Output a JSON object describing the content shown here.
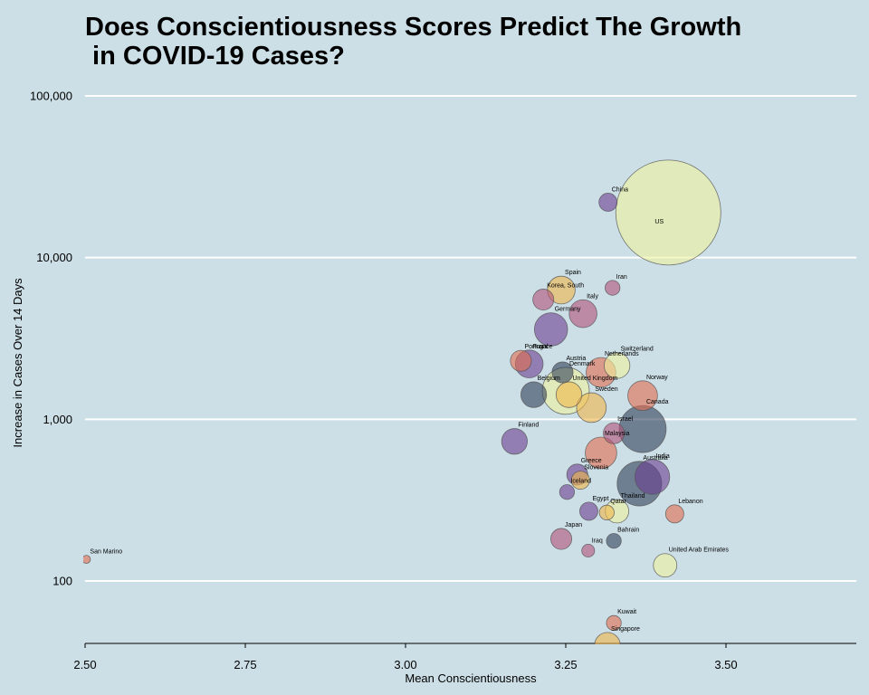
{
  "chart_data": {
    "type": "scatter",
    "title": "Does Conscientiousness Scores Predict The Growth\n in COVID-19 Cases?",
    "xlabel": "Mean Conscientiousness",
    "ylabel": "Increase in Cases Over 14 Days",
    "x_scale": "linear",
    "y_scale": "log10",
    "xlim": [
      2.5,
      3.7
    ],
    "ylim": [
      40,
      100000
    ],
    "x_ticks": [
      2.5,
      2.75,
      3.0,
      3.25,
      3.5
    ],
    "x_tick_labels": [
      "2.50",
      "2.75",
      "3.00",
      "3.25",
      "3.50"
    ],
    "y_ticks": [
      100,
      1000,
      10000,
      100000
    ],
    "y_tick_labels": [
      "100",
      "1,000",
      "10,000",
      "100,000"
    ],
    "grid": "horizontal major lines only, white",
    "legend": "none",
    "point_opacity": 0.6,
    "palette": [
      "#313f5a",
      "#6a3d8f",
      "#b0527a",
      "#e36d4e",
      "#f0b54a",
      "#eef29c"
    ],
    "points": [
      {
        "label": "US",
        "x": 3.41,
        "y": 19000,
        "size": 100,
        "color": "#eef29c"
      },
      {
        "label": "China",
        "x": 3.316,
        "y": 22000,
        "size": 3,
        "color": "#6a3d8f"
      },
      {
        "label": "Iran",
        "x": 3.323,
        "y": 6500,
        "size": 2,
        "color": "#b0527a"
      },
      {
        "label": "Spain",
        "x": 3.243,
        "y": 6300,
        "size": 7,
        "color": "#f0b54a"
      },
      {
        "label": "Korea, South",
        "x": 3.215,
        "y": 5500,
        "size": 4,
        "color": "#b0527a"
      },
      {
        "label": "Italy",
        "x": 3.277,
        "y": 4500,
        "size": 7,
        "color": "#b0527a"
      },
      {
        "label": "Germany",
        "x": 3.227,
        "y": 3600,
        "size": 10,
        "color": "#6a3d8f"
      },
      {
        "label": "Portugal",
        "x": 3.18,
        "y": 2300,
        "size": 4,
        "color": "#e36d4e"
      },
      {
        "label": "France",
        "x": 3.193,
        "y": 2200,
        "size": 7,
        "color": "#6a3d8f"
      },
      {
        "label": "Austria",
        "x": 3.245,
        "y": 1950,
        "size": 4,
        "color": "#313f5a"
      },
      {
        "label": "Switzerland",
        "x": 3.33,
        "y": 2150,
        "size": 6,
        "color": "#eef29c"
      },
      {
        "label": "Netherlands",
        "x": 3.305,
        "y": 1950,
        "size": 8,
        "color": "#e36d4e"
      },
      {
        "label": "Belgium",
        "x": 3.2,
        "y": 1420,
        "size": 6,
        "color": "#313f5a"
      },
      {
        "label": "United Kingdom",
        "x": 3.255,
        "y": 1420,
        "size": 6,
        "color": "#f0b54a"
      },
      {
        "label": "Denmark",
        "x": 3.25,
        "y": 1500,
        "size": 20,
        "color": "#eef29c"
      },
      {
        "label": "Norway",
        "x": 3.37,
        "y": 1400,
        "size": 8,
        "color": "#e36d4e"
      },
      {
        "label": "Sweden",
        "x": 3.29,
        "y": 1180,
        "size": 8,
        "color": "#f0b54a"
      },
      {
        "label": "Canada",
        "x": 3.37,
        "y": 870,
        "size": 20,
        "color": "#313f5a"
      },
      {
        "label": "Finland",
        "x": 3.17,
        "y": 730,
        "size": 6,
        "color": "#6a3d8f"
      },
      {
        "label": "Israel",
        "x": 3.325,
        "y": 820,
        "size": 4,
        "color": "#b0527a"
      },
      {
        "label": "Malaysia",
        "x": 3.305,
        "y": 620,
        "size": 9,
        "color": "#e36d4e"
      },
      {
        "label": "India",
        "x": 3.385,
        "y": 440,
        "size": 11,
        "color": "#6a3d8f"
      },
      {
        "label": "Australia",
        "x": 3.365,
        "y": 400,
        "size": 18,
        "color": "#313f5a"
      },
      {
        "label": "Greece",
        "x": 3.268,
        "y": 455,
        "size": 4,
        "color": "#6a3d8f"
      },
      {
        "label": "Slovenia",
        "x": 3.273,
        "y": 420,
        "size": 3,
        "color": "#f0b54a"
      },
      {
        "label": "Iceland",
        "x": 3.252,
        "y": 355,
        "size": 2,
        "color": "#6a3d8f"
      },
      {
        "label": "Lebanon",
        "x": 3.42,
        "y": 260,
        "size": 3,
        "color": "#e36d4e"
      },
      {
        "label": "Thailand",
        "x": 3.33,
        "y": 270,
        "size": 5,
        "color": "#eef29c"
      },
      {
        "label": "Egypt",
        "x": 3.286,
        "y": 270,
        "size": 3,
        "color": "#6a3d8f"
      },
      {
        "label": "Qatar",
        "x": 3.314,
        "y": 265,
        "size": 2,
        "color": "#f0b54a"
      },
      {
        "label": "Bahrain",
        "x": 3.325,
        "y": 177,
        "size": 2,
        "color": "#313f5a"
      },
      {
        "label": "Japan",
        "x": 3.243,
        "y": 182,
        "size": 4,
        "color": "#b0527a"
      },
      {
        "label": "Iraq",
        "x": 3.285,
        "y": 154,
        "size": 1.5,
        "color": "#b0527a"
      },
      {
        "label": "United Arab Emirates",
        "x": 3.405,
        "y": 125,
        "size": 5,
        "color": "#eef29c"
      },
      {
        "label": "San Marino",
        "x": 2.502,
        "y": 136,
        "size": 0.6,
        "color": "#e36d4e"
      },
      {
        "label": "Kuwait",
        "x": 3.325,
        "y": 55,
        "size": 2,
        "color": "#e36d4e"
      },
      {
        "label": "Singapore",
        "x": 3.315,
        "y": 40,
        "size": 6,
        "color": "#f0b54a"
      }
    ]
  }
}
